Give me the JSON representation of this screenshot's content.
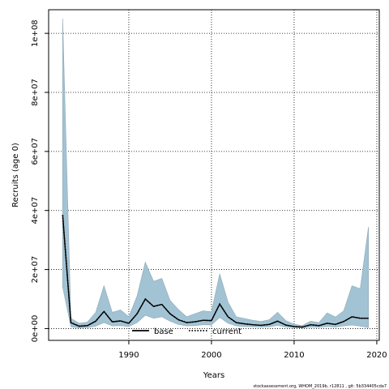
{
  "chart_data": {
    "type": "area",
    "xlabel": "Years",
    "ylabel": "Recruits (age 0)",
    "xlim": [
      1980.3,
      2020.3
    ],
    "ylim": [
      -4000000,
      108000000
    ],
    "x_ticks": [
      1990,
      2000,
      2010,
      2020
    ],
    "y_ticks": [
      0,
      20000000,
      40000000,
      60000000,
      80000000,
      100000000
    ],
    "y_tick_labels": [
      "0e+00",
      "2e+07",
      "4e+07",
      "6e+07",
      "8e+07",
      "1e+08"
    ],
    "grid": true,
    "legend_position": "bottom-center",
    "footnote": "stockassessment.org, WHOM_2019b, r12811 , git: 5b334405cda7",
    "x": [
      1982,
      1983,
      1984,
      1985,
      1986,
      1987,
      1988,
      1989,
      1990,
      1991,
      1992,
      1993,
      1994,
      1995,
      1996,
      1997,
      1998,
      1999,
      2000,
      2001,
      2002,
      2003,
      2004,
      2005,
      2006,
      2007,
      2008,
      2009,
      2010,
      2011,
      2012,
      2013,
      2014,
      2015,
      2016,
      2017,
      2018,
      2019
    ],
    "series": [
      {
        "name": "base",
        "color": "#000000",
        "style": "solid",
        "values": [
          38500000,
          2000000,
          800000,
          1000000,
          2500000,
          5800000,
          2300000,
          2600000,
          1800000,
          5000000,
          10000000,
          7500000,
          8200000,
          5000000,
          3000000,
          2000000,
          2300000,
          2800000,
          2700000,
          8300000,
          4000000,
          2000000,
          1600000,
          1300000,
          1100000,
          1400000,
          2500000,
          1200000,
          700000,
          500000,
          1300000,
          1000000,
          1800000,
          1400000,
          2400000,
          4000000,
          3500000,
          3500000
        ]
      },
      {
        "name": "current",
        "color": "#000000",
        "style": "dotted",
        "values": [
          38500000,
          2000000,
          800000,
          1000000,
          2500000,
          5800000,
          2300000,
          2600000,
          1800000,
          5000000,
          10000000,
          7500000,
          8200000,
          5000000,
          3000000,
          2000000,
          2300000,
          2800000,
          2700000,
          8300000,
          4000000,
          2000000,
          1600000,
          1300000,
          1100000,
          1400000,
          2500000,
          1200000,
          700000,
          500000,
          1300000,
          1000000,
          1800000,
          1400000,
          2400000,
          4000000,
          3500000,
          3500000
        ]
      }
    ],
    "band": {
      "color": "#a2c3d3",
      "lower": [
        14000000,
        600000,
        200000,
        300000,
        800000,
        2000000,
        900000,
        1000000,
        700000,
        2000000,
        4500000,
        3500000,
        4000000,
        2500000,
        1400000,
        900000,
        1000000,
        1300000,
        1200000,
        3800000,
        1800000,
        900000,
        700000,
        600000,
        500000,
        600000,
        1100000,
        500000,
        300000,
        200000,
        500000,
        400000,
        700000,
        500000,
        900000,
        1200000,
        800000,
        300000
      ],
      "upper": [
        105000000,
        3500000,
        1800000,
        2200000,
        5500000,
        14500000,
        5500000,
        6300000,
        4000000,
        11000000,
        22500000,
        16000000,
        17000000,
        9500000,
        6500000,
        4000000,
        5000000,
        6000000,
        5700000,
        18500000,
        9000000,
        4000000,
        3400000,
        2800000,
        2400000,
        3000000,
        5500000,
        2700000,
        1500000,
        1000000,
        2500000,
        2000000,
        5300000,
        3900000,
        6000000,
        14500000,
        13500000,
        34500000
      ]
    }
  }
}
